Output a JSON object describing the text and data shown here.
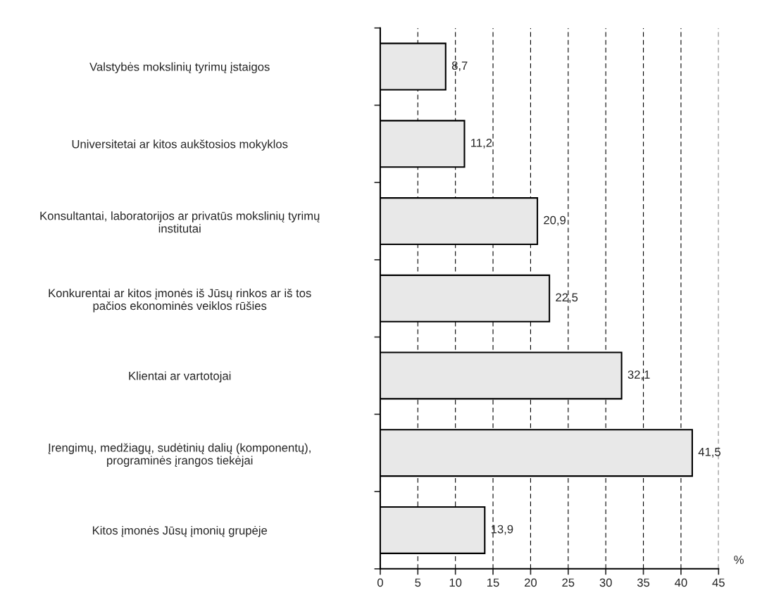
{
  "chart_data": {
    "type": "bar",
    "orientation": "horizontal",
    "categories": [
      "Valstybės mokslinių tyrimų įstaigos",
      "Universitetai ar kitos aukštosios mokyklos",
      "Konsultantai, laboratorijos ar privatūs mokslinių tyrimų\ninstitutai",
      "Konkurentai ar kitos įmonės iš Jūsų rinkos ar iš tos\npačios ekonominės veiklos rūšies",
      "Klientai ar vartotojai",
      "Įrengimų, medžiagų, sudėtinių dalių (komponentų),\nprograminės įrangos tiekėjai",
      "Kitos įmonės Jūsų įmonių grupėje"
    ],
    "values": [
      8.7,
      11.2,
      20.9,
      22.5,
      32.1,
      41.5,
      13.9
    ],
    "value_labels": [
      "8,7",
      "11,2",
      "20,9",
      "22,5",
      "32,1",
      "41,5",
      "13,9"
    ],
    "color": "#e8e8e8",
    "xlabel": "%",
    "xlim": [
      0,
      45
    ],
    "xticks": [
      0,
      5,
      10,
      15,
      20,
      25,
      30,
      35,
      40,
      45
    ],
    "grid": "x",
    "line_style": "dashed",
    "legend": false
  }
}
